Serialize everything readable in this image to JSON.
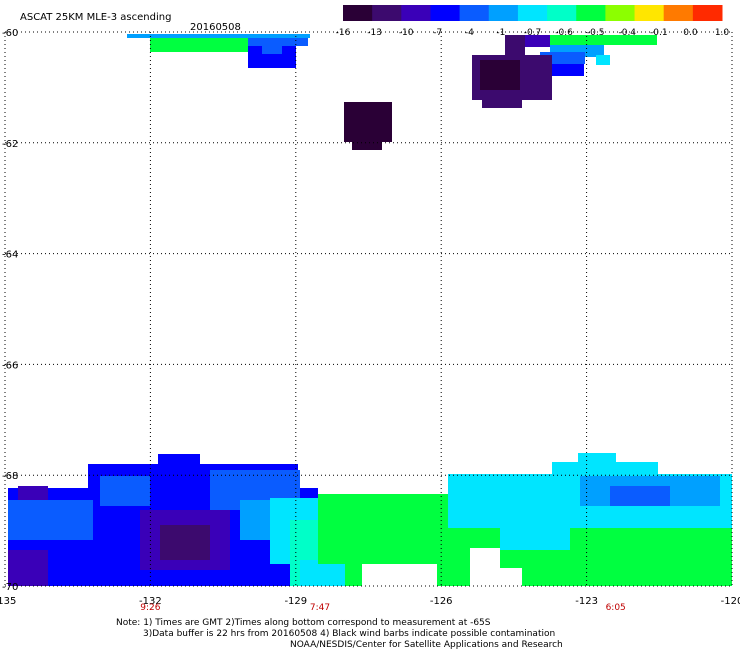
{
  "header": {
    "title": "ASCAT 25KM MLE-3 ascending",
    "date": "20160508"
  },
  "colorbar": {
    "labels": [
      "-16",
      "-13",
      "-10",
      "-7",
      "-4",
      "-1",
      "-0.7",
      "-0.6",
      "-0.5",
      "-0.4",
      "-0.1",
      "0.0",
      "1.0"
    ],
    "colors": [
      "#2a0036",
      "#3c0a6e",
      "#3a00b8",
      "#0000ff",
      "#0a5cff",
      "#00a0ff",
      "#00e5ff",
      "#00ffc8",
      "#00ff40",
      "#8cff00",
      "#ffe600",
      "#ff7a00",
      "#ff2a00"
    ]
  },
  "chart_data": {
    "type": "heatmap",
    "title": "ASCAT 25KM MLE-3 ascending",
    "date": "20160508",
    "x_ticks": [
      "-135",
      "-132",
      "-129",
      "-126",
      "-123",
      "-120"
    ],
    "y_ticks": [
      "-60",
      "-62",
      "-64",
      "-66",
      "-68",
      "-70"
    ],
    "xlim": [
      -135,
      -120
    ],
    "ylim": [
      -70,
      -60
    ],
    "grid": true,
    "colorscale_labels": [
      "-16",
      "-13",
      "-10",
      "-7",
      "-4",
      "-1",
      "-0.7",
      "-0.6",
      "-0.5",
      "-0.4",
      "-0.1",
      "0.0",
      "1.0"
    ],
    "time_labels": [
      {
        "lon": -132,
        "text": "9:26"
      },
      {
        "lon": -128.5,
        "text": "7:47"
      },
      {
        "lon": -122.4,
        "text": "6:05"
      }
    ]
  },
  "notes": {
    "line1": "Note: 1) Times are GMT 2)Times along bottom correspond to measurement at -65S",
    "line2": "3)Data buffer is 22 hrs from 20160508 4) Black wind barbs indicate possible contamination",
    "line3": "NOAA/NESDIS/Center for Satellite Applications and Research"
  }
}
